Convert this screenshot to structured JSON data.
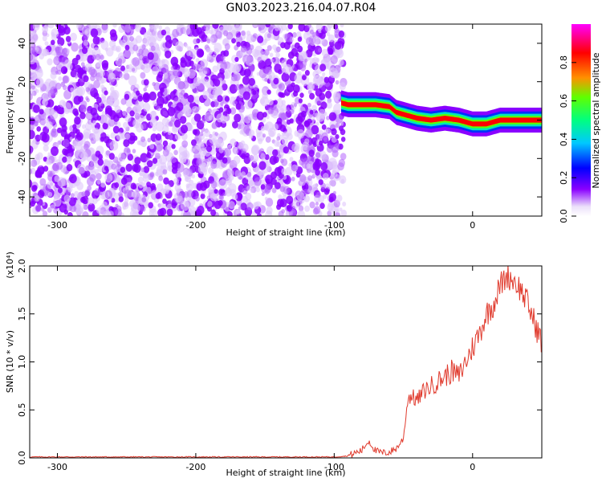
{
  "title": "GN03.2023.216.04.07.R04",
  "colors": {
    "noise": "#7d2ff0",
    "snr_line": "#e03a2d",
    "colorbar_stops": [
      "#ffffff",
      "#f4eefc",
      "#7a00ff",
      "#0000ff",
      "#00bfff",
      "#00ff80",
      "#80ff00",
      "#ff8000",
      "#ff0000",
      "#ff00ff"
    ]
  },
  "chart_data": [
    {
      "type": "heatmap",
      "xlabel": "Height of straight line (km)",
      "ylabel": "Frequency (Hz)",
      "xlim": [
        -320,
        50
      ],
      "ylim": [
        -50,
        50
      ],
      "x_ticks": [
        -300,
        -200,
        -100,
        0
      ],
      "y_ticks": [
        -40,
        -20,
        0,
        20,
        40
      ],
      "x_tick_labels": [
        "-300",
        "-200",
        "-100",
        "0"
      ],
      "y_tick_labels": [
        "-40",
        "-20",
        "0",
        "20",
        "40"
      ],
      "noise_region_x": [
        -320,
        -95
      ],
      "signal_track": {
        "x": [
          -95,
          -90,
          -80,
          -70,
          -60,
          -55,
          -50,
          -40,
          -30,
          -20,
          -10,
          0,
          10,
          20,
          30,
          40,
          50
        ],
        "freq": [
          9,
          8,
          8,
          8,
          7,
          4,
          3,
          1,
          0,
          1,
          0,
          -2,
          -2,
          0,
          0,
          0,
          0
        ],
        "amplitude": [
          0.5,
          0.7,
          0.8,
          0.9,
          0.8,
          0.7,
          0.8,
          0.8,
          0.9,
          0.8,
          0.8,
          0.9,
          0.9,
          0.9,
          0.9,
          0.8,
          0.7
        ]
      },
      "colorbar": {
        "label": "Normalized spectral amplitude",
        "range": [
          0,
          1
        ],
        "ticks": [
          0.0,
          0.2,
          0.4,
          0.6,
          0.8
        ],
        "tick_labels": [
          "0.0",
          "0.2",
          "0.4",
          "0.6",
          "0.8"
        ]
      }
    },
    {
      "type": "line",
      "xlabel": "Height of straight line (km)",
      "ylabel": "SNR (10 * v/v)",
      "yscale_label": "(x10⁴)",
      "xlim": [
        -320,
        50
      ],
      "ylim": [
        0,
        2.0
      ],
      "x_ticks": [
        -300,
        -200,
        -100,
        0
      ],
      "y_ticks": [
        0.0,
        0.5,
        1.0,
        1.5,
        2.0
      ],
      "x_tick_labels": [
        "-300",
        "-200",
        "-100",
        "0"
      ],
      "y_tick_labels": [
        "0.0",
        "0.5",
        "1.0",
        "1.5",
        "2.0"
      ],
      "series": [
        {
          "x": [
            -320,
            -100,
            -90,
            -85,
            -80,
            -75,
            -70,
            -65,
            -60,
            -55,
            -50,
            -47,
            -45,
            -40,
            -35,
            -30,
            -25,
            -20,
            -15,
            -10,
            -5,
            0,
            5,
            10,
            15,
            20,
            25,
            30,
            35,
            40,
            45,
            50
          ],
          "y": [
            0.01,
            0.01,
            0.02,
            0.05,
            0.08,
            0.18,
            0.07,
            0.05,
            0.06,
            0.1,
            0.2,
            0.6,
            0.65,
            0.6,
            0.7,
            0.75,
            0.8,
            0.85,
            0.9,
            0.85,
            1.0,
            1.15,
            1.3,
            1.5,
            1.6,
            1.8,
            1.9,
            1.85,
            1.75,
            1.6,
            1.4,
            1.2
          ]
        }
      ]
    }
  ]
}
